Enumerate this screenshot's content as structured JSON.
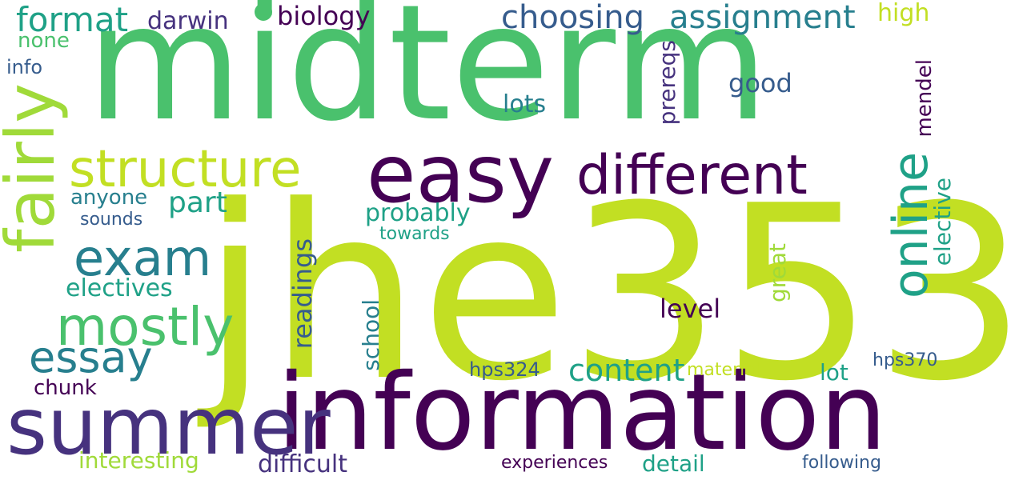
{
  "colors": {
    "background": "#ffffff",
    "dark_purple": "#440154",
    "indigo": "#46327e",
    "slate_blue": "#365c8d",
    "teal_blue": "#277f8e",
    "teal": "#1fa187",
    "green": "#4ac16d",
    "yellow_green": "#a0da39",
    "lime": "#c2df23"
  },
  "words": {
    "midterm": "midterm",
    "jhe353": "jhe353",
    "information": "information",
    "summer": "summer",
    "easy": "easy",
    "different": "different",
    "structure": "structure",
    "fairly": "fairly",
    "online": "online",
    "exam": "exam",
    "mostly": "mostly",
    "essay": "essay",
    "choosing": "choosing",
    "assignment": "assignment",
    "format": "format",
    "darwin": "darwin",
    "biology": "biology",
    "high": "high",
    "none": "none",
    "info": "info",
    "prereqs": "prereqs",
    "mendel": "mendel",
    "good": "good",
    "lots": "lots",
    "part": "part",
    "anyone": "anyone",
    "sounds": "sounds",
    "probably": "probably",
    "towards": "towards",
    "readings": "readings",
    "electives": "electives",
    "elective": "elective",
    "great": "great",
    "level": "level",
    "school": "school",
    "content": "content",
    "chunk": "chunk",
    "hps324": "hps324",
    "material": "material",
    "lot": "lot",
    "hps370": "hps370",
    "interesting": "interesting",
    "difficult": "difficult",
    "experiences": "experiences",
    "detail": "detail",
    "following": "following"
  }
}
